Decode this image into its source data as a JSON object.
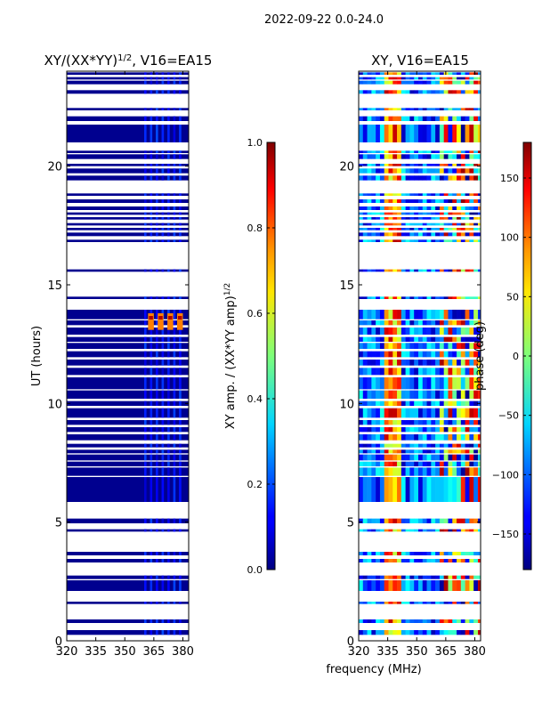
{
  "figure": {
    "suptitle": "2022-09-22 0.0-24.0",
    "xlabel": "frequency (MHz)"
  },
  "chart_data": [
    {
      "type": "heatmap",
      "title_base": "XY/(XX*YY)",
      "title_sup": "1/2",
      "title_tail": ", V16=EA15",
      "xlabel": "",
      "ylabel": "UT (hours)",
      "xlim": [
        320,
        383
      ],
      "ylim": [
        0,
        24
      ],
      "xticks": [
        320,
        335,
        350,
        365,
        380
      ],
      "yticks": [
        0,
        5,
        10,
        15,
        20
      ],
      "colorbar": {
        "label_base": "XY amp. / (XX*YY amp)",
        "label_sup": "1/2",
        "range": [
          0.0,
          1.0
        ],
        "ticks": [
          "0.0",
          "0.2",
          "0.4",
          "0.6",
          "0.8",
          "1.0"
        ],
        "tick_values": [
          0.0,
          0.2,
          0.4,
          0.6,
          0.8,
          1.0
        ],
        "colormap": "jet"
      },
      "description_values": {
        "background": 0.02,
        "high_blocks_hours": [
          13.1,
          13.8
        ],
        "high_blocks_mhz": [
          [
            362,
            365
          ],
          [
            367,
            370
          ],
          [
            372,
            375
          ],
          [
            377,
            380
          ]
        ],
        "high_value": 0.75
      }
    },
    {
      "type": "heatmap",
      "title": "XY, V16=EA15",
      "xlabel": "",
      "ylabel": "",
      "xlim": [
        320,
        383
      ],
      "ylim": [
        0,
        24
      ],
      "xticks": [
        320,
        335,
        350,
        365,
        380
      ],
      "yticks": [
        0,
        5,
        10,
        15,
        20
      ],
      "colorbar": {
        "label": "phase (deg)",
        "range": [
          -180,
          180
        ],
        "ticks": [
          "−150",
          "−100",
          "−50",
          "0",
          "50",
          "100",
          "150"
        ],
        "tick_values": [
          -150,
          -100,
          -50,
          0,
          50,
          100,
          150
        ],
        "colormap": "jet"
      }
    }
  ],
  "data_rows_hours": [
    [
      0.25,
      0.45
    ],
    [
      0.75,
      0.9
    ],
    [
      1.55,
      1.65
    ],
    [
      2.1,
      2.55
    ],
    [
      2.6,
      2.75
    ],
    [
      3.3,
      3.45
    ],
    [
      3.6,
      3.75
    ],
    [
      4.6,
      4.7
    ],
    [
      4.95,
      5.15
    ],
    [
      5.85,
      6.9
    ],
    [
      6.95,
      7.3
    ],
    [
      7.35,
      7.55
    ],
    [
      7.6,
      7.85
    ],
    [
      7.9,
      8.05
    ],
    [
      8.15,
      8.3
    ],
    [
      8.45,
      8.7
    ],
    [
      8.8,
      9.0
    ],
    [
      9.1,
      9.3
    ],
    [
      9.4,
      9.8
    ],
    [
      9.9,
      10.1
    ],
    [
      10.2,
      10.55
    ],
    [
      10.6,
      11.1
    ],
    [
      11.2,
      11.5
    ],
    [
      11.6,
      11.85
    ],
    [
      11.95,
      12.2
    ],
    [
      12.3,
      12.55
    ],
    [
      12.6,
      12.8
    ],
    [
      12.9,
      13.2
    ],
    [
      13.3,
      13.5
    ],
    [
      13.55,
      13.95
    ],
    [
      14.4,
      14.5
    ],
    [
      15.55,
      15.65
    ],
    [
      16.8,
      16.9
    ],
    [
      17.05,
      17.2
    ],
    [
      17.3,
      17.4
    ],
    [
      17.5,
      17.6
    ],
    [
      17.75,
      17.85
    ],
    [
      17.95,
      18.05
    ],
    [
      18.15,
      18.3
    ],
    [
      18.45,
      18.6
    ],
    [
      18.75,
      18.85
    ],
    [
      19.4,
      19.6
    ],
    [
      19.7,
      19.9
    ],
    [
      20.0,
      20.1
    ],
    [
      20.3,
      20.5
    ],
    [
      20.55,
      20.65
    ],
    [
      21.0,
      21.75
    ],
    [
      21.9,
      22.1
    ],
    [
      22.35,
      22.45
    ],
    [
      23.05,
      23.2
    ],
    [
      23.45,
      23.6
    ],
    [
      23.65,
      23.75
    ],
    [
      23.85,
      23.95
    ]
  ]
}
